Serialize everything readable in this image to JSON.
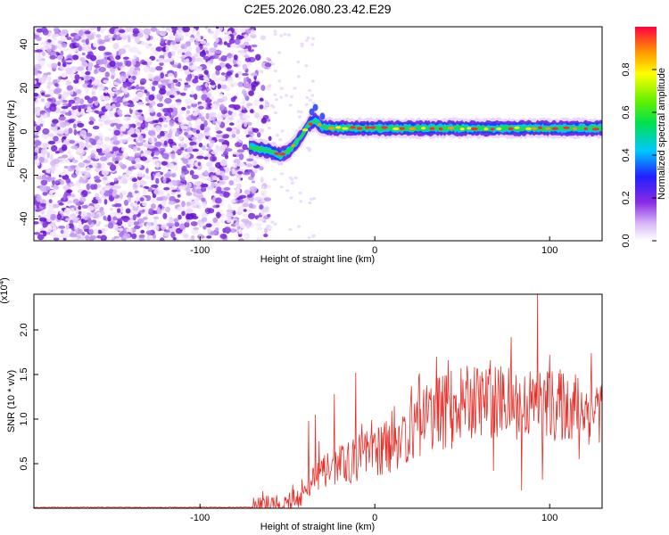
{
  "title": "C2E5.2026.080.23.42.E29",
  "chart_data": [
    {
      "type": "heatmap",
      "name": "spectrogram",
      "xlabel": "Height of straight line (km)",
      "ylabel": "Frequency (Hz)",
      "xlim": [
        -195,
        130
      ],
      "ylim": [
        -50,
        48
      ],
      "xticks": [
        -100,
        0,
        100
      ],
      "yticks": [
        -40,
        -20,
        0,
        20,
        40
      ],
      "noise_region_x": [
        -195,
        -65
      ],
      "signal_ridge": {
        "x": [
          -72,
          -60,
          -54,
          -48,
          -42,
          -38,
          -34,
          -30,
          -20,
          0,
          20,
          40,
          60,
          80,
          100,
          130
        ],
        "y": [
          -7,
          -9,
          -11,
          -8,
          -2,
          3,
          5,
          2,
          1.5,
          1.5,
          1.5,
          1.5,
          1.5,
          1.5,
          1.5,
          1.5
        ]
      },
      "colorbar": {
        "label": "Normalized spectral amplitude",
        "range": [
          0,
          1
        ],
        "ticks": [
          "0.0",
          "0.2",
          "0.4",
          "0.6",
          "0.8"
        ],
        "tick_values": [
          0,
          0.2,
          0.4,
          0.6,
          0.8
        ]
      }
    },
    {
      "type": "line",
      "name": "snr",
      "xlabel": "Height of straight line (km)",
      "ylabel": "SNR (10 * v/v)",
      "multiplier": "(x10",
      "multiplier_exp": "4",
      "multiplier_close": ")",
      "xlim": [
        -195,
        130
      ],
      "ylim": [
        0,
        2.4
      ],
      "xticks": [
        -100,
        0,
        100
      ],
      "yticks": [
        "0.5",
        "1.0",
        "1.5",
        "2.0"
      ],
      "ytick_values": [
        0.5,
        1.0,
        1.5,
        2.0
      ],
      "color": "#e8302a",
      "envelope": {
        "x": [
          -195,
          -70,
          -50,
          -42,
          -35,
          -25,
          -10,
          0,
          10,
          20,
          30,
          40,
          50,
          60,
          70,
          80,
          90,
          100,
          110,
          120,
          130
        ],
        "y": [
          0.01,
          0.01,
          0.04,
          0.15,
          0.35,
          0.45,
          0.55,
          0.62,
          0.72,
          0.85,
          1.0,
          1.1,
          1.18,
          1.2,
          1.2,
          1.18,
          1.17,
          1.15,
          1.15,
          1.12,
          1.12
        ]
      },
      "spikes": [
        {
          "x": -38,
          "y": 0.98
        },
        {
          "x": -34,
          "y": 1.05
        },
        {
          "x": -32,
          "y": 0.75
        },
        {
          "x": -23,
          "y": 1.28
        },
        {
          "x": -11,
          "y": 1.52
        },
        {
          "x": 57,
          "y": 1.58
        },
        {
          "x": 66,
          "y": 1.66
        },
        {
          "x": 78,
          "y": 1.92
        },
        {
          "x": 84,
          "y": 1.95
        },
        {
          "x": 93,
          "y": 2.4
        },
        {
          "x": 100,
          "y": 1.72
        },
        {
          "x": 124,
          "y": 1.74
        }
      ],
      "dips": [
        {
          "x": 68,
          "y": 0.42
        },
        {
          "x": 84,
          "y": 0.2
        },
        {
          "x": 96,
          "y": 0.32
        },
        {
          "x": 117,
          "y": 0.55
        }
      ]
    }
  ]
}
